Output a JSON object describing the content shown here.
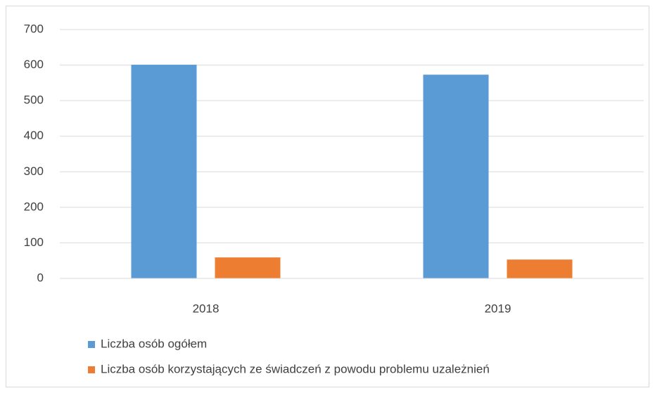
{
  "chart_data": {
    "type": "bar",
    "categories": [
      "2018",
      "2019"
    ],
    "series": [
      {
        "name": "Liczba osób ogółem",
        "color": "#5b9bd5",
        "values": [
          601,
          573
        ]
      },
      {
        "name": "Liczba osób korzystających ze świadczeń z powodu problemu uzależnień",
        "color": "#ed7d31",
        "values": [
          59,
          53
        ]
      }
    ],
    "ylim": [
      0,
      700
    ],
    "yticks": [
      0,
      100,
      200,
      300,
      400,
      500,
      600,
      700
    ],
    "grid": true,
    "legend": "bottom-left"
  }
}
